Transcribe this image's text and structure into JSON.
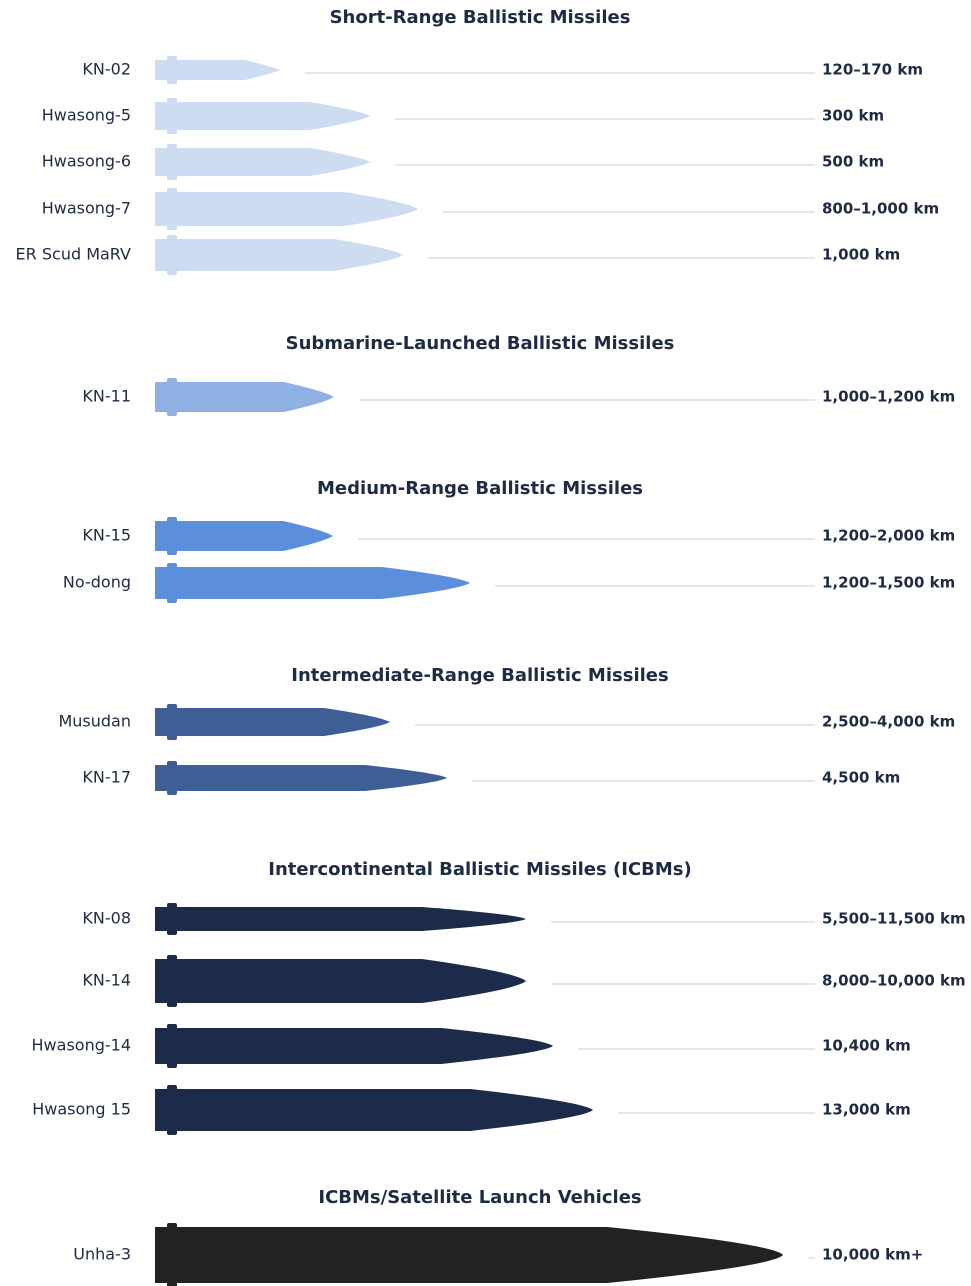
{
  "sections": [
    {
      "title": "Short-Range Ballistic Missiles",
      "missiles": [
        {
          "name": "KN-02",
          "range": "120–170 km"
        },
        {
          "name": "Hwasong-5",
          "range": "300 km"
        },
        {
          "name": "Hwasong-6",
          "range": "500 km"
        },
        {
          "name": "Hwasong-7",
          "range": "800–1,000 km"
        },
        {
          "name": "ER Scud MaRV",
          "range": "1,000 km"
        }
      ]
    },
    {
      "title": "Submarine-Launched Ballistic Missiles",
      "missiles": [
        {
          "name": "KN-11",
          "range": "1,000–1,200 km"
        }
      ]
    },
    {
      "title": "Medium-Range Ballistic Missiles",
      "missiles": [
        {
          "name": "KN-15",
          "range": "1,200–2,000 km"
        },
        {
          "name": "No-dong",
          "range": "1,200–1,500 km"
        }
      ]
    },
    {
      "title": "Intermediate-Range Ballistic Missiles",
      "missiles": [
        {
          "name": "Musudan",
          "range": "2,500–4,000 km"
        },
        {
          "name": "KN-17",
          "range": "4,500 km"
        }
      ]
    },
    {
      "title": "Intercontinental Ballistic Missiles (ICBMs)",
      "missiles": [
        {
          "name": "KN-08",
          "range": "5,500–11,500 km"
        },
        {
          "name": "KN-14",
          "range": "8,000–10,000 km"
        },
        {
          "name": "Hwasong-14",
          "range": "10,400 km"
        },
        {
          "name": "Hwasong 15",
          "range": "13,000 km"
        }
      ]
    },
    {
      "title": "ICBMs/Satellite Launch Vehicles",
      "missiles": [
        {
          "name": "Unha-3",
          "range": "10,000 km+"
        }
      ]
    }
  ]
}
